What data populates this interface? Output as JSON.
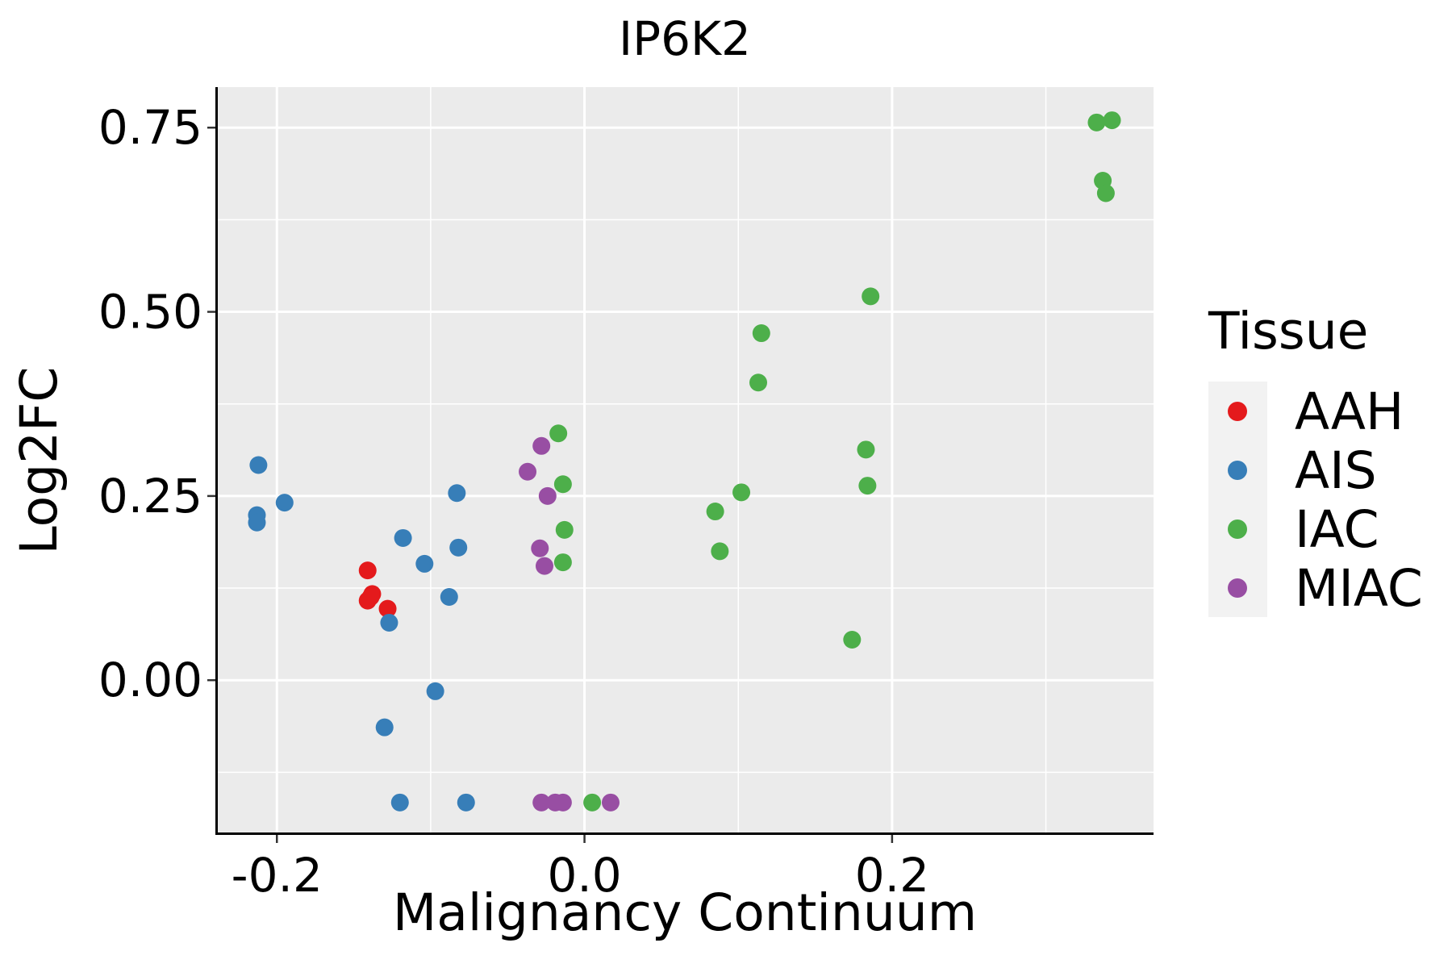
{
  "chart_data": {
    "type": "scatter",
    "title": "IP6K2",
    "xlabel": "Malignancy Continuum",
    "ylabel": "Log2FC",
    "xlim": [
      -0.24,
      0.37
    ],
    "ylim": [
      -0.21,
      0.805
    ],
    "x_ticks": [
      -0.2,
      0.0,
      0.2
    ],
    "x_tick_labels": [
      "-0.2",
      "0.0",
      "0.2"
    ],
    "x_minor_ticks": [
      -0.1,
      0.1,
      0.3
    ],
    "y_ticks": [
      0.0,
      0.25,
      0.5,
      0.75
    ],
    "y_tick_labels": [
      "0.00",
      "0.25",
      "0.50",
      "0.75"
    ],
    "y_minor_ticks": [
      -0.125,
      0.125,
      0.375,
      0.625
    ],
    "legend_title": "Tissue",
    "legend_position": "right",
    "series": [
      {
        "name": "AAH",
        "color": "#E41A1C",
        "points": [
          {
            "x": -0.141,
            "y": 0.149
          },
          {
            "x": -0.138,
            "y": 0.117
          },
          {
            "x": -0.139,
            "y": 0.113
          },
          {
            "x": -0.141,
            "y": 0.108
          },
          {
            "x": -0.128,
            "y": 0.097
          }
        ]
      },
      {
        "name": "AIS",
        "color": "#377EB8",
        "points": [
          {
            "x": -0.212,
            "y": 0.292
          },
          {
            "x": -0.213,
            "y": 0.224
          },
          {
            "x": -0.213,
            "y": 0.214
          },
          {
            "x": -0.195,
            "y": 0.241
          },
          {
            "x": -0.083,
            "y": 0.254
          },
          {
            "x": -0.118,
            "y": 0.193
          },
          {
            "x": -0.082,
            "y": 0.18
          },
          {
            "x": -0.104,
            "y": 0.158
          },
          {
            "x": -0.088,
            "y": 0.113
          },
          {
            "x": -0.127,
            "y": 0.078
          },
          {
            "x": -0.097,
            "y": -0.015
          },
          {
            "x": -0.13,
            "y": -0.064
          },
          {
            "x": -0.12,
            "y": -0.166
          },
          {
            "x": -0.077,
            "y": -0.166
          }
        ]
      },
      {
        "name": "IAC",
        "color": "#4DAF4A",
        "points": [
          {
            "x": 0.333,
            "y": 0.757
          },
          {
            "x": 0.343,
            "y": 0.76
          },
          {
            "x": 0.337,
            "y": 0.678
          },
          {
            "x": 0.339,
            "y": 0.661
          },
          {
            "x": 0.186,
            "y": 0.521
          },
          {
            "x": 0.115,
            "y": 0.471
          },
          {
            "x": 0.113,
            "y": 0.404
          },
          {
            "x": 0.183,
            "y": 0.313
          },
          {
            "x": 0.184,
            "y": 0.264
          },
          {
            "x": 0.102,
            "y": 0.255
          },
          {
            "x": 0.085,
            "y": 0.229
          },
          {
            "x": 0.088,
            "y": 0.175
          },
          {
            "x": 0.174,
            "y": 0.055
          },
          {
            "x": -0.017,
            "y": 0.335
          },
          {
            "x": -0.014,
            "y": 0.266
          },
          {
            "x": -0.013,
            "y": 0.204
          },
          {
            "x": -0.014,
            "y": 0.16
          },
          {
            "x": 0.005,
            "y": -0.166
          }
        ]
      },
      {
        "name": "MIAC",
        "color": "#984EA3",
        "points": [
          {
            "x": -0.028,
            "y": 0.318
          },
          {
            "x": -0.037,
            "y": 0.283
          },
          {
            "x": -0.024,
            "y": 0.25
          },
          {
            "x": -0.029,
            "y": 0.179
          },
          {
            "x": -0.026,
            "y": 0.155
          },
          {
            "x": -0.028,
            "y": -0.166
          },
          {
            "x": -0.019,
            "y": -0.166
          },
          {
            "x": -0.014,
            "y": -0.166
          },
          {
            "x": 0.017,
            "y": -0.166
          }
        ]
      }
    ]
  }
}
